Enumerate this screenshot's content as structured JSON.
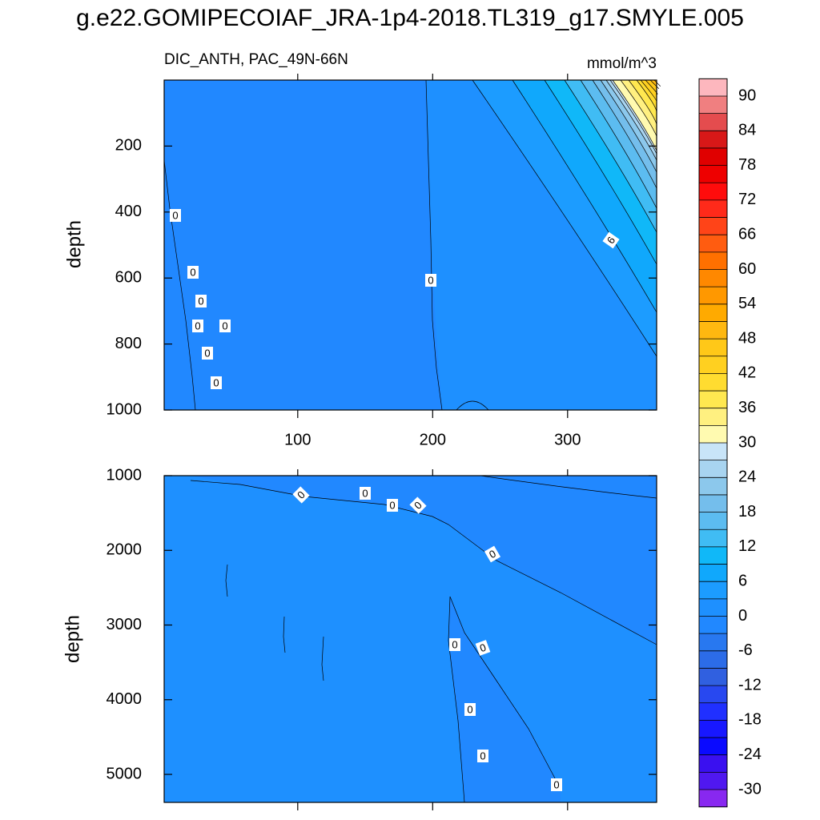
{
  "title": "g.e22.GOMIPECOIAF_JRA-1p4-2018.TL319_g17.SMYLE.005",
  "chart_data": [
    {
      "type": "contour",
      "subtitle_left": "DIC_ANTH, PAC_49N-66N",
      "subtitle_right": "mmol/m^3",
      "ylabel": "depth",
      "xlim": [
        1,
        366
      ],
      "ylim": [
        0,
        1000
      ],
      "xticks": [
        100,
        200,
        300
      ],
      "yticks": [
        200,
        400,
        600,
        800,
        1000
      ],
      "contour_labels": [
        0,
        0,
        0,
        0,
        0,
        0,
        0,
        0,
        6
      ]
    },
    {
      "type": "contour",
      "ylabel": "depth",
      "xlim": [
        1,
        366
      ],
      "ylim": [
        1000,
        5375
      ],
      "yticks": [
        1000,
        2000,
        3000,
        4000,
        5000
      ],
      "contour_labels": [
        0,
        0,
        0,
        0,
        0,
        0,
        0,
        0,
        0,
        0
      ]
    },
    {
      "type": "colorbar",
      "levels": [
        90,
        87,
        84,
        81,
        78,
        75,
        72,
        69,
        66,
        63,
        60,
        57,
        54,
        51,
        48,
        45,
        42,
        39,
        36,
        33,
        30,
        27,
        24,
        21,
        18,
        15,
        12,
        9,
        6,
        3,
        0,
        -3,
        -6,
        -9,
        -12,
        -15,
        -18,
        -21,
        -24,
        -27,
        -30
      ],
      "ticks": [
        90,
        84,
        78,
        72,
        66,
        60,
        54,
        48,
        42,
        36,
        30,
        24,
        18,
        12,
        6,
        0,
        -6,
        -12,
        -18,
        -24,
        -30
      ],
      "colors": [
        "#fdb7be",
        "#f07f80",
        "#e44c4e",
        "#d81818",
        "#e00000",
        "#ee0000",
        "#ff0c0c",
        "#ff2a1a",
        "#ff4418",
        "#ff5c10",
        "#ff7000",
        "#ff8800",
        "#ff9800",
        "#ffaa00",
        "#ffb810",
        "#ffc818",
        "#ffd020",
        "#ffdc30",
        "#ffe850",
        "#fff080",
        "#fffab0",
        "#c8e4f8",
        "#a8d4f0",
        "#8cc8ec",
        "#74beec",
        "#5cbcf0",
        "#40bcf4",
        "#10b8f8",
        "#10a8fc",
        "#1c9cff",
        "#1e90ff",
        "#2188ff",
        "#2878f0",
        "#2c6ce8",
        "#3060e0",
        "#2848f0",
        "#2030ff",
        "#1818ff",
        "#0a0aff",
        "#3a10f0",
        "#5018f0",
        "#8828f0"
      ]
    }
  ]
}
